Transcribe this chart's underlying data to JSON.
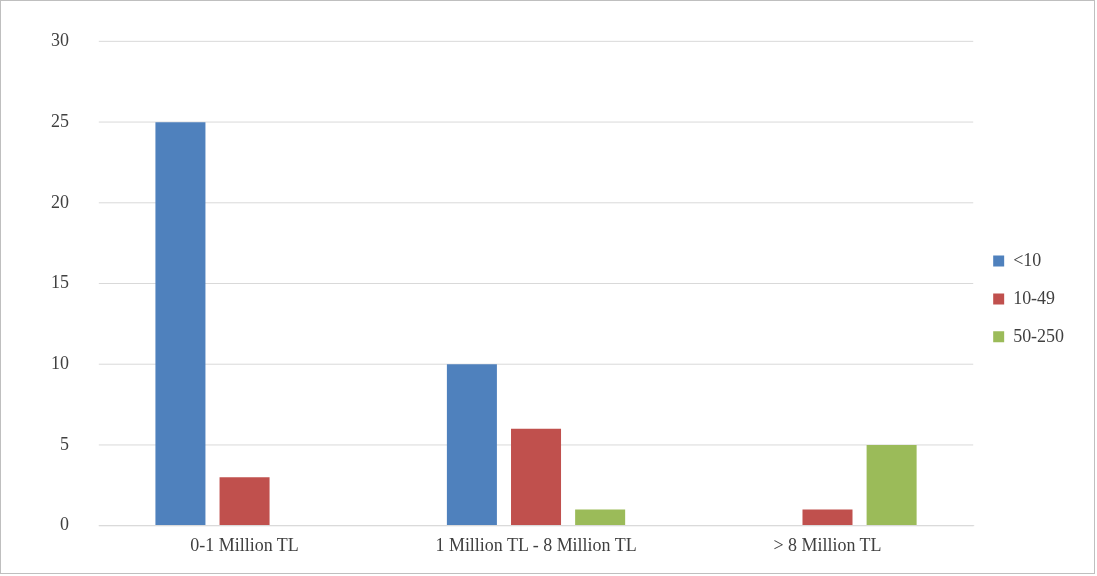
{
  "chart_data": {
    "type": "bar",
    "categories": [
      "0-1 Million TL",
      "1 Million TL - 8 Million TL",
      "> 8 Million TL"
    ],
    "series": [
      {
        "name": "<10",
        "color": "#4f81bd",
        "values": [
          25,
          10,
          0
        ]
      },
      {
        "name": "10-49",
        "color": "#c0504d",
        "values": [
          3,
          6,
          1
        ]
      },
      {
        "name": "50-250",
        "color": "#9bbb59",
        "values": [
          0,
          1,
          5
        ]
      }
    ],
    "ylim": [
      0,
      30
    ],
    "yticks": [
      0,
      5,
      10,
      15,
      20,
      25,
      30
    ],
    "grid": "y",
    "legend": "right"
  }
}
